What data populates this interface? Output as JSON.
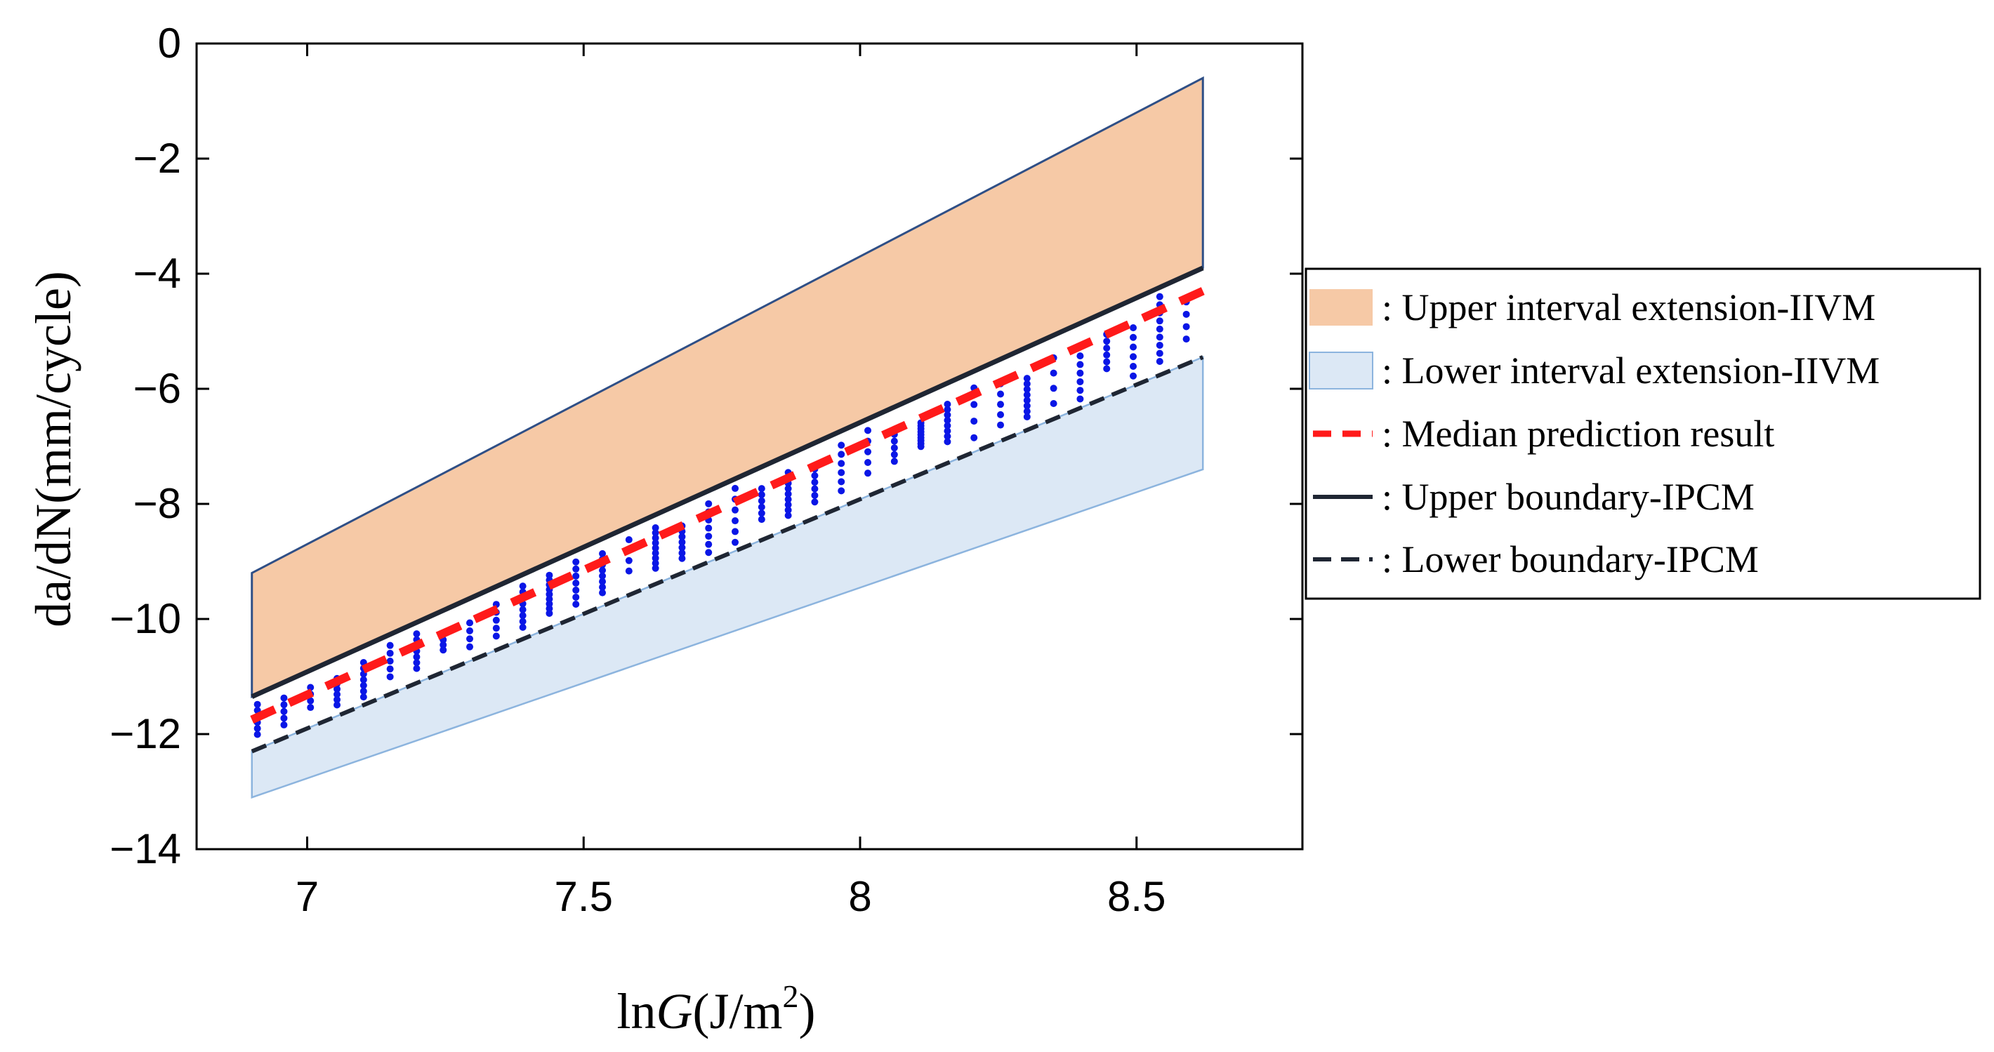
{
  "chart_data": {
    "type": "line",
    "title": "",
    "xlabel": "lnG(J/m²)",
    "xlabel_prefix": "ln",
    "xlabel_var": "G",
    "xlabel_unit": "(J/m",
    "xlabel_sup": "2",
    "xlabel_close": ")",
    "ylabel": "da/dN(mm/cycle)",
    "xlim": [
      6.8,
      8.8
    ],
    "ylim": [
      -14,
      0
    ],
    "xticks": [
      7,
      7.5,
      8,
      8.5
    ],
    "xtick_labels": [
      "7",
      "7.5",
      "8",
      "8.5"
    ],
    "yticks": [
      0,
      -2,
      -4,
      -6,
      -8,
      -10,
      -12,
      -14
    ],
    "ytick_labels": [
      "0",
      "−2",
      "−4",
      "−6",
      "−8",
      "−10",
      "−12",
      "−14"
    ],
    "grid": false,
    "legend_position": "right",
    "bands": [
      {
        "name": "Upper interval extension-IIVM",
        "color": "#F6C9A6",
        "edge": "#2F4F86",
        "x": [
          6.9,
          8.62
        ],
        "upper": [
          -9.2,
          -0.6
        ],
        "lower": [
          -11.35,
          -3.9
        ]
      },
      {
        "name": "Lower interval extension-IIVM",
        "color": "#DCE8F5",
        "edge": "#8CB4DE",
        "x": [
          6.9,
          8.62
        ],
        "upper": [
          -12.3,
          -5.45
        ],
        "lower": [
          -13.1,
          -7.4
        ]
      }
    ],
    "series": [
      {
        "name": "Median prediction result",
        "style": "dashed",
        "color": "#FF1A1A",
        "x": [
          6.9,
          8.62
        ],
        "y": [
          -11.75,
          -4.3
        ]
      },
      {
        "name": "Upper boundary-IPCM",
        "style": "solid",
        "color": "#1F2633",
        "x": [
          6.9,
          8.62
        ],
        "y": [
          -11.35,
          -3.9
        ]
      },
      {
        "name": "Lower boundary-IPCM",
        "style": "dashed",
        "color": "#1F2633",
        "x": [
          6.9,
          8.62
        ],
        "y": [
          -12.3,
          -5.45
        ]
      }
    ],
    "scatter": {
      "name": "Experimental data points",
      "color": "#0A16E6",
      "x_min": 6.9,
      "x_max": 8.62,
      "x_step": 0.048
    },
    "legend": [
      {
        "label": ": Upper interval extension-IIVM",
        "kind": "patch-upper"
      },
      {
        "label": ": Lower interval extension-IIVM",
        "kind": "patch-lower"
      },
      {
        "label": ": Median prediction result",
        "kind": "line-median"
      },
      {
        "label": ": Upper boundary-IPCM",
        "kind": "line-upper"
      },
      {
        "label": ": Lower boundary-IPCM",
        "kind": "line-lower"
      }
    ]
  }
}
